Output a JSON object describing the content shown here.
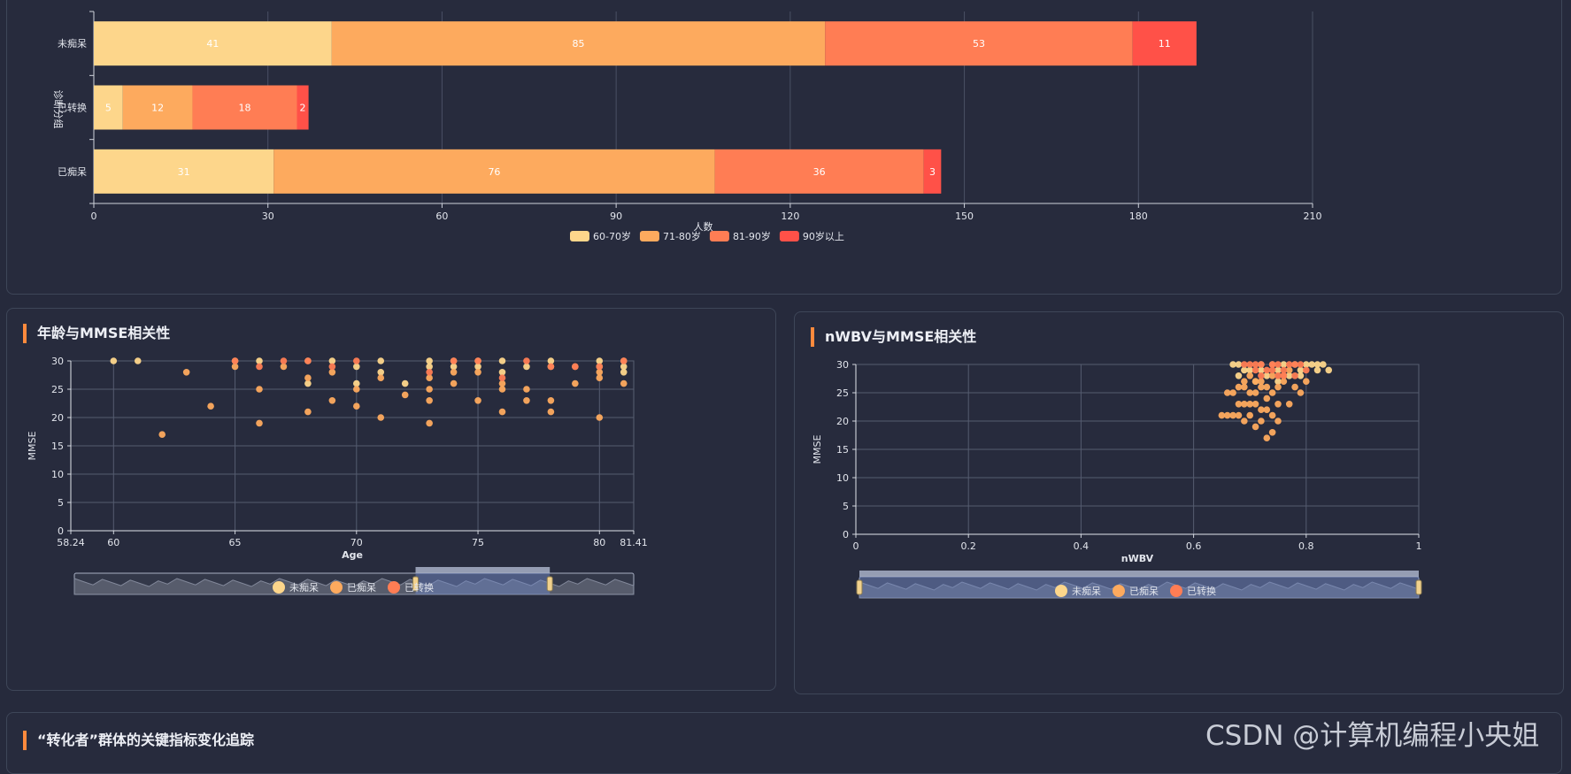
{
  "stacked_bar": {
    "type": "bar",
    "orientation": "horizontal",
    "stacked": true,
    "categories": [
      "未痴呆",
      "已转换",
      "已痴呆"
    ],
    "series": [
      {
        "name": "60-70岁",
        "color": "#fdd68b",
        "values": [
          41,
          5,
          31
        ]
      },
      {
        "name": "71-80岁",
        "color": "#fdaa5e",
        "values": [
          85,
          12,
          76
        ]
      },
      {
        "name": "81-90岁",
        "color": "#ff7d54",
        "values": [
          53,
          18,
          36
        ]
      },
      {
        "name": "90岁以上",
        "color": "#ff5148",
        "values": [
          11,
          2,
          3
        ]
      }
    ],
    "xlabel": "人数",
    "ylabel": "诊断分组",
    "xlim": [
      0,
      210
    ],
    "xticks": [
      0,
      30,
      60,
      90,
      120,
      150,
      180,
      210
    ],
    "grid": true
  },
  "scatter_age": {
    "title": "年龄与MMSE相关性",
    "type": "scatter",
    "xlabel": "Age",
    "ylabel": "MMSE",
    "xlim": [
      58.24,
      81.41
    ],
    "ylim": [
      0,
      30
    ],
    "xticks": [
      58.24,
      60,
      65,
      70,
      75,
      80,
      81.41
    ],
    "yticks": [
      0,
      5,
      10,
      15,
      20,
      25,
      30
    ],
    "legend": [
      {
        "name": "未痴呆",
        "color": "#fdd68b"
      },
      {
        "name": "已痴呆",
        "color": "#fdaa5e"
      },
      {
        "name": "已转换",
        "color": "#ff7d54"
      }
    ],
    "series": [
      {
        "name": "未痴呆",
        "points": [
          [
            60,
            30
          ],
          [
            61,
            30
          ],
          [
            71,
            30
          ],
          [
            73,
            30
          ],
          [
            74,
            30
          ],
          [
            76,
            30
          ],
          [
            77,
            29
          ],
          [
            78,
            30
          ],
          [
            80,
            30
          ],
          [
            81,
            30
          ],
          [
            81,
            29
          ],
          [
            75,
            30
          ],
          [
            70,
            29
          ],
          [
            68,
            30
          ],
          [
            66,
            30
          ],
          [
            69,
            30
          ],
          [
            65,
            30
          ],
          [
            72,
            26
          ],
          [
            76,
            28
          ],
          [
            71,
            28
          ],
          [
            73,
            29
          ],
          [
            74,
            29
          ],
          [
            78,
            29
          ],
          [
            80,
            29
          ],
          [
            81,
            28
          ],
          [
            68,
            26
          ],
          [
            70,
            26
          ],
          [
            75,
            29
          ]
        ]
      },
      {
        "name": "已痴呆",
        "points": [
          [
            62,
            17
          ],
          [
            63,
            28
          ],
          [
            64,
            22
          ],
          [
            65,
            29
          ],
          [
            66,
            25
          ],
          [
            66,
            19
          ],
          [
            67,
            29
          ],
          [
            68,
            21
          ],
          [
            68,
            27
          ],
          [
            69,
            23
          ],
          [
            69,
            28
          ],
          [
            70,
            22
          ],
          [
            70,
            25
          ],
          [
            71,
            20
          ],
          [
            71,
            27
          ],
          [
            72,
            24
          ],
          [
            73,
            19
          ],
          [
            73,
            23
          ],
          [
            73,
            25
          ],
          [
            73,
            27
          ],
          [
            74,
            26
          ],
          [
            74,
            28
          ],
          [
            75,
            23
          ],
          [
            75,
            28
          ],
          [
            76,
            21
          ],
          [
            76,
            25
          ],
          [
            76,
            26
          ],
          [
            77,
            23
          ],
          [
            77,
            25
          ],
          [
            78,
            21
          ],
          [
            78,
            23
          ],
          [
            79,
            26
          ],
          [
            79,
            29
          ],
          [
            80,
            20
          ],
          [
            80,
            27
          ],
          [
            80,
            28
          ],
          [
            81,
            26
          ]
        ]
      },
      {
        "name": "已转换",
        "points": [
          [
            65,
            30
          ],
          [
            66,
            29
          ],
          [
            67,
            30
          ],
          [
            68,
            30
          ],
          [
            69,
            29
          ],
          [
            70,
            30
          ],
          [
            73,
            28
          ],
          [
            74,
            30
          ],
          [
            75,
            30
          ],
          [
            76,
            27
          ],
          [
            77,
            30
          ],
          [
            78,
            29
          ],
          [
            79,
            29
          ],
          [
            80,
            29
          ],
          [
            81,
            30
          ]
        ]
      }
    ],
    "zoom_range": [
      0.61,
      0.85
    ]
  },
  "scatter_nwbv": {
    "title": "nWBV与MMSE相关性",
    "type": "scatter",
    "xlabel": "nWBV",
    "ylabel": "MMSE",
    "xlim": [
      0,
      1
    ],
    "ylim": [
      0,
      30
    ],
    "xticks": [
      "0",
      "0.2",
      "0.4",
      "0.6",
      "0.8",
      "1"
    ],
    "yticks": [
      0,
      5,
      10,
      15,
      20,
      25,
      30
    ],
    "legend": [
      {
        "name": "未痴呆",
        "color": "#fdd68b"
      },
      {
        "name": "已痴呆",
        "color": "#fdaa5e"
      },
      {
        "name": "已转换",
        "color": "#ff7d54"
      }
    ],
    "series": [
      {
        "name": "未痴呆",
        "points": [
          [
            0.67,
            30
          ],
          [
            0.68,
            30
          ],
          [
            0.7,
            29
          ],
          [
            0.72,
            30
          ],
          [
            0.74,
            30
          ],
          [
            0.75,
            29
          ],
          [
            0.76,
            30
          ],
          [
            0.78,
            30
          ],
          [
            0.79,
            29
          ],
          [
            0.8,
            30
          ],
          [
            0.81,
            30
          ],
          [
            0.82,
            30
          ],
          [
            0.83,
            30
          ],
          [
            0.84,
            29
          ],
          [
            0.77,
            28
          ],
          [
            0.73,
            28
          ],
          [
            0.71,
            27
          ],
          [
            0.69,
            29
          ],
          [
            0.82,
            29
          ],
          [
            0.79,
            28
          ],
          [
            0.75,
            27
          ],
          [
            0.72,
            29
          ],
          [
            0.68,
            28
          ]
        ]
      },
      {
        "name": "已痴呆",
        "points": [
          [
            0.65,
            21
          ],
          [
            0.66,
            21
          ],
          [
            0.67,
            21
          ],
          [
            0.68,
            21
          ],
          [
            0.69,
            20
          ],
          [
            0.7,
            21
          ],
          [
            0.71,
            19
          ],
          [
            0.72,
            20
          ],
          [
            0.73,
            17
          ],
          [
            0.74,
            18
          ],
          [
            0.75,
            20
          ],
          [
            0.68,
            23
          ],
          [
            0.69,
            23
          ],
          [
            0.7,
            23
          ],
          [
            0.71,
            23
          ],
          [
            0.72,
            22
          ],
          [
            0.73,
            22
          ],
          [
            0.74,
            21
          ],
          [
            0.75,
            23
          ],
          [
            0.77,
            23
          ],
          [
            0.67,
            25
          ],
          [
            0.69,
            26
          ],
          [
            0.7,
            25
          ],
          [
            0.71,
            25
          ],
          [
            0.72,
            26
          ],
          [
            0.73,
            24
          ],
          [
            0.74,
            25
          ],
          [
            0.75,
            26
          ],
          [
            0.76,
            27
          ],
          [
            0.78,
            26
          ],
          [
            0.79,
            25
          ],
          [
            0.69,
            27
          ],
          [
            0.7,
            28
          ],
          [
            0.71,
            27
          ],
          [
            0.72,
            27
          ],
          [
            0.73,
            26
          ],
          [
            0.74,
            28
          ],
          [
            0.76,
            28
          ],
          [
            0.77,
            29
          ],
          [
            0.8,
            27
          ],
          [
            0.66,
            25
          ],
          [
            0.68,
            26
          ]
        ]
      },
      {
        "name": "已转换",
        "points": [
          [
            0.7,
            30
          ],
          [
            0.71,
            30
          ],
          [
            0.72,
            30
          ],
          [
            0.73,
            29
          ],
          [
            0.74,
            30
          ],
          [
            0.75,
            30
          ],
          [
            0.76,
            29
          ],
          [
            0.77,
            30
          ],
          [
            0.78,
            30
          ],
          [
            0.79,
            30
          ],
          [
            0.8,
            29
          ],
          [
            0.74,
            29
          ],
          [
            0.76,
            28
          ],
          [
            0.78,
            28
          ],
          [
            0.72,
            28
          ],
          [
            0.75,
            28
          ],
          [
            0.69,
            30
          ],
          [
            0.71,
            29
          ]
        ]
      }
    ],
    "zoom_range": [
      0.0,
      1.0
    ]
  },
  "bottom": {
    "title": "“转化者”群体的关键指标变化追踪"
  },
  "watermark": "CSDN @计算机编程小央姐"
}
